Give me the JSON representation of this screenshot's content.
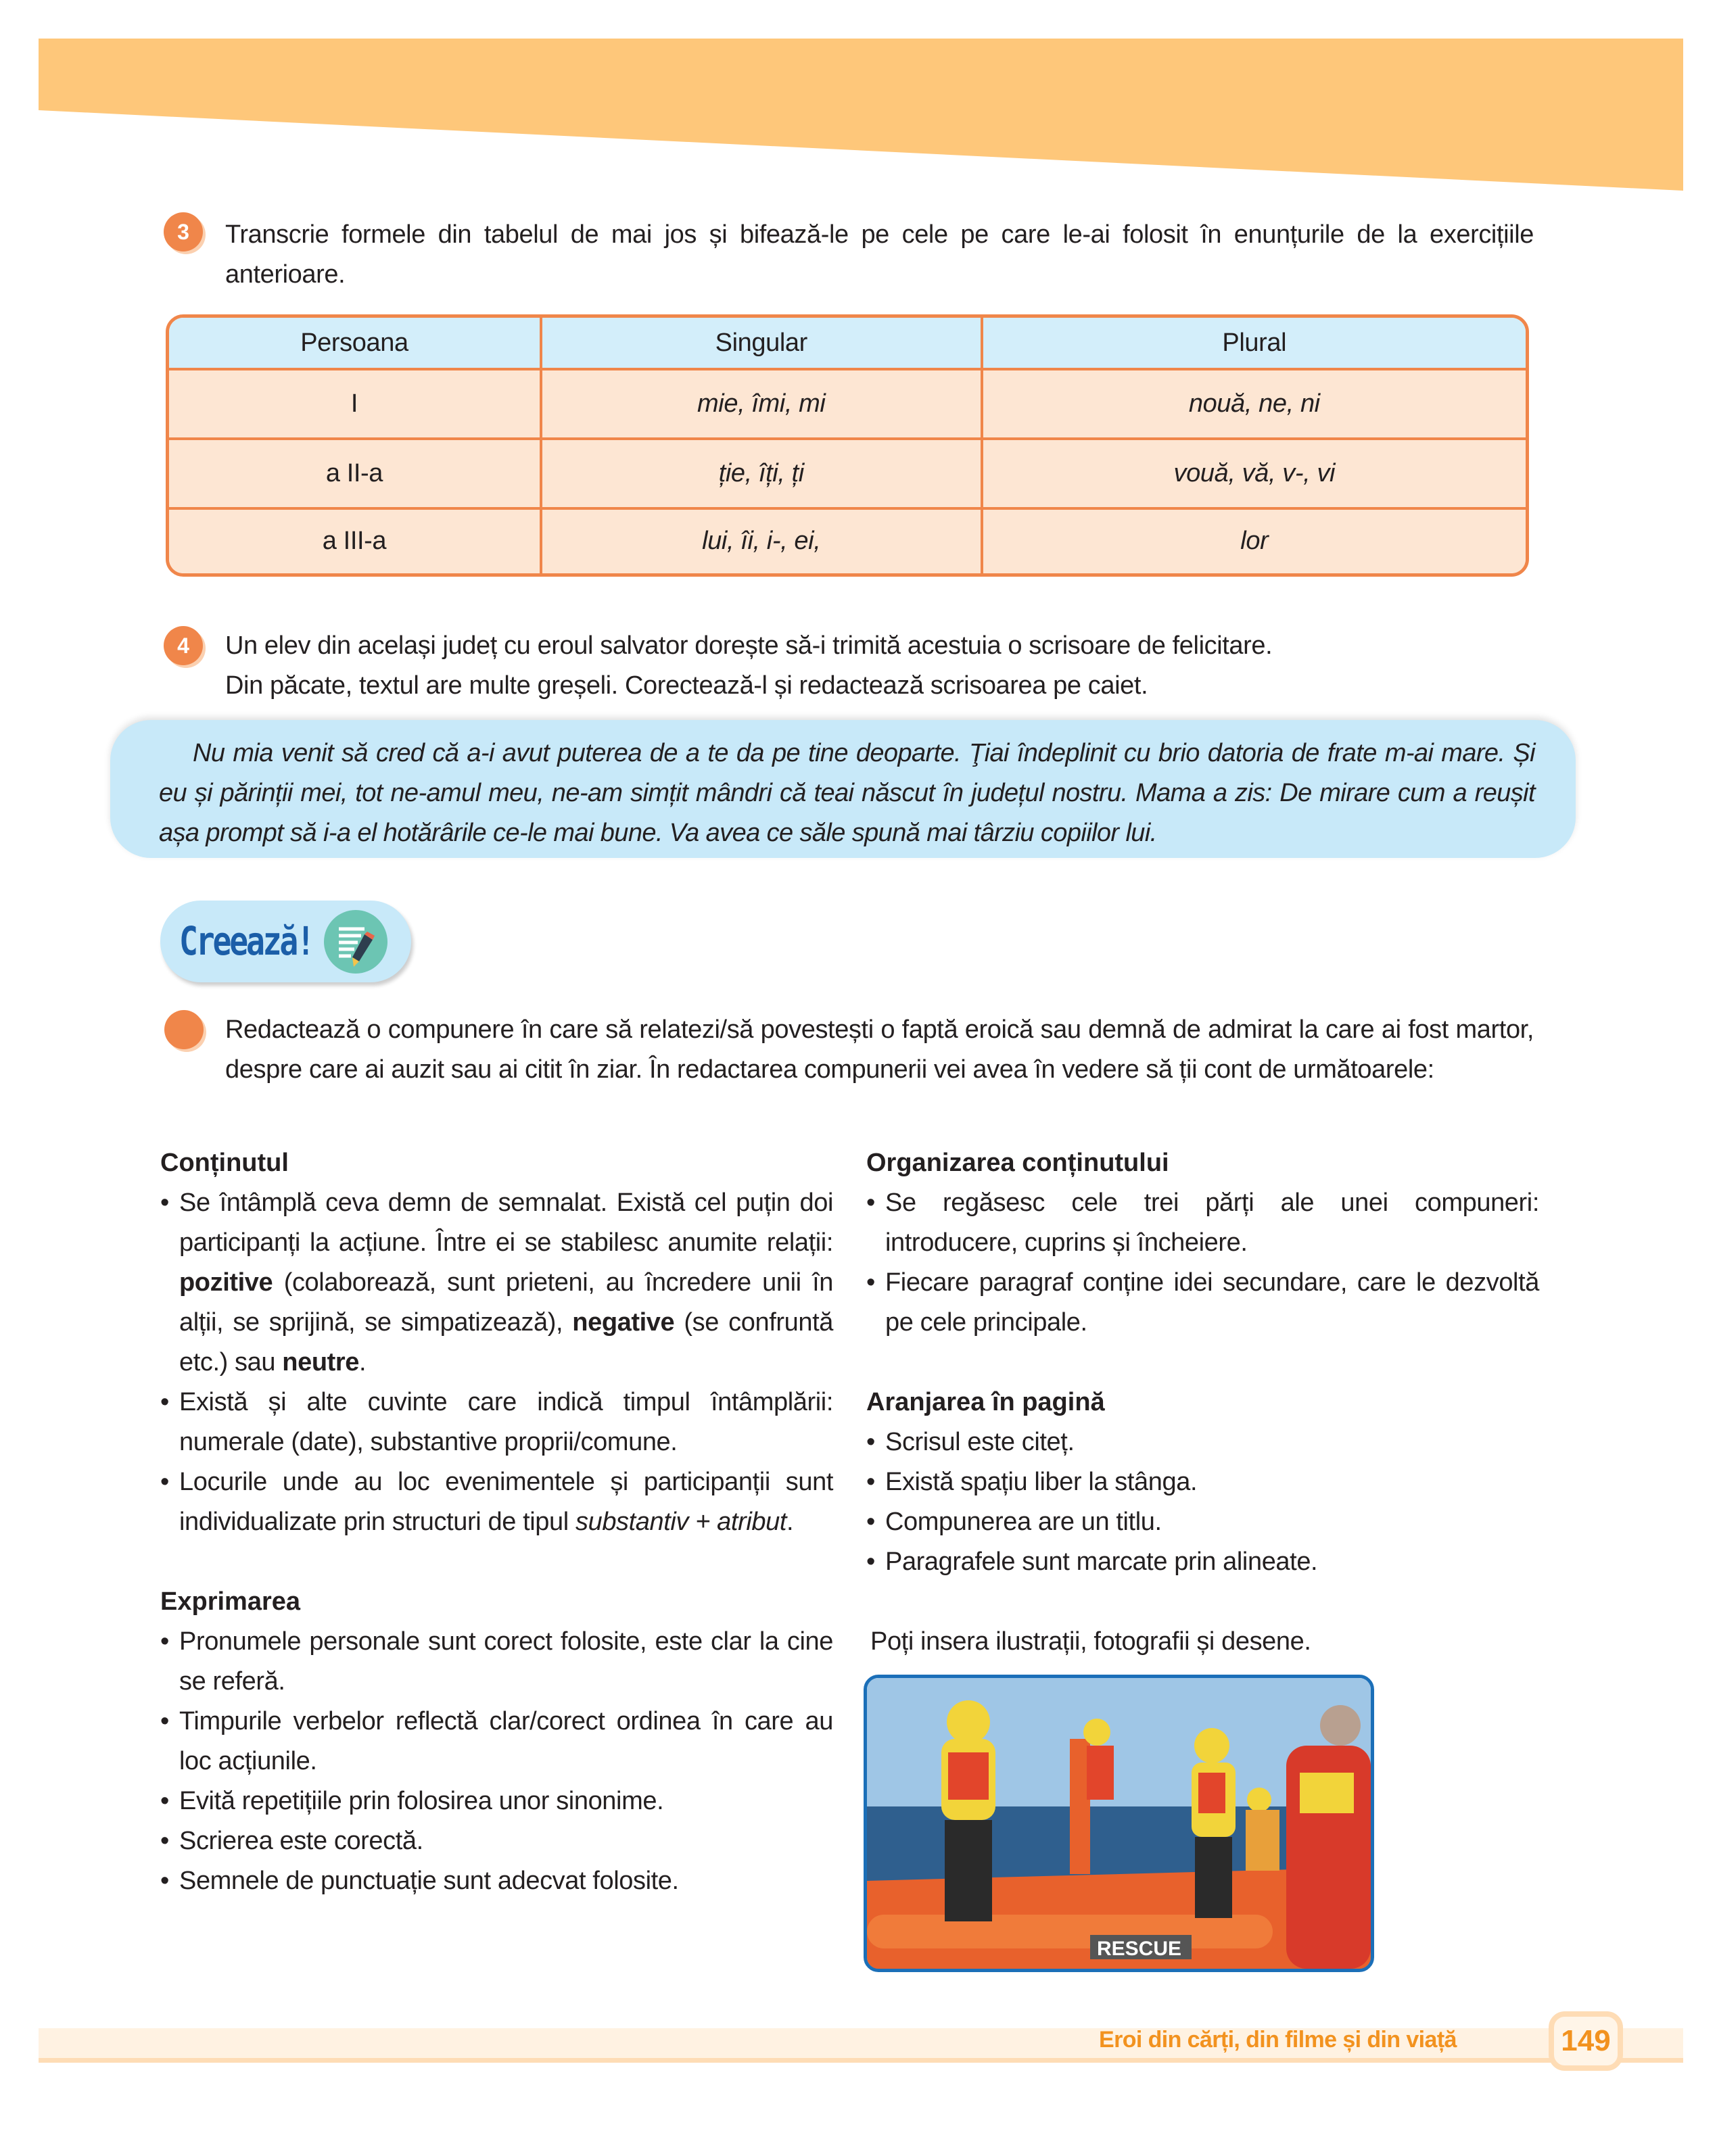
{
  "colors": {
    "accent": "#f0864a",
    "header_band": "#fec77a",
    "table_header": "#d3eefa",
    "table_cell": "#fde6d3",
    "quote_bg": "#c8e9f9",
    "title_blue": "#1b5ea8",
    "footer_orange": "#f2921f"
  },
  "ex3": {
    "number": "3",
    "text": "Transcrie formele din tabelul de mai jos și bifează-le pe cele pe care le-ai folosit în enunțurile de la exercițiile anterioare."
  },
  "table": {
    "headers": [
      "Persoana",
      "Singular",
      "Plural"
    ],
    "rows": [
      [
        "I",
        "mie, îmi, mi",
        "nouă, ne, ni"
      ],
      [
        "a II-a",
        "ție, îți, ți",
        "vouă, vă, v-, vi"
      ],
      [
        "a III-a",
        "lui, îi, i-, ei,",
        "lor"
      ]
    ]
  },
  "ex4": {
    "number": "4",
    "line1": "Un elev din același județ cu eroul salvator dorește să-i trimită acestuia o scrisoare de felicitare.",
    "line2": "Din păcate, textul are multe greșeli. Corectează-l și redactează scrisoarea pe caiet."
  },
  "letter": "Nu mia venit să cred că a-i avut puterea de a te da pe tine deoparte. Ţiai îndeplinit cu brio datoria de frate m-ai mare. Și eu și părinții mei, tot ne-amul meu, ne-am simțit mândri că teai născut în județul nostru. Mama a zis: De mirare cum a reușit așa prompt să i-a el hotărârile ce-le mai bune. Va avea ce săle spună mai târziu copiilor lui.",
  "create": {
    "label": "Creează!",
    "icon": "writing-pencil-icon"
  },
  "task": "Redactează o compunere în care să relatezi/să povestești o faptă eroică sau demnă de admirat la care ai fost martor, despre care ai auzit sau ai citit în ziar. În redactarea compunerii vei avea în vedere să ții cont de următoarele:",
  "left": {
    "content_title": "Conținutul",
    "content_items": [
      {
        "a": "Se întâmplă ceva demn de semnalat. Există cel puțin doi participanți la acțiune. Între ei se stabilesc anumite relații: ",
        "b1": "pozitive",
        "c": " (colaborează, sunt prieteni, au încredere unii în alții, se sprijină, se simpatizează), ",
        "b2": "negative",
        "d": " (se confruntă etc.) sau ",
        "b3": "neutre",
        "e": "."
      },
      {
        "a": "Există și alte cuvinte care indică timpul întâmplării: numerale (date), substantive proprii/comune."
      },
      {
        "a": "Locurile unde au loc evenimentele și participanții sunt individualizate prin structuri de tipul ",
        "i": "substantiv + atribut",
        "e": "."
      }
    ],
    "expr_title": "Exprimarea",
    "expr_items": [
      "Pronumele personale sunt corect folosite, este clar la cine se referă.",
      "Timpurile verbelor reflectă clar/corect ordinea în care au loc acțiunile.",
      "Evită repetițiile prin folosirea unor sinonime.",
      "Scrierea este corectă.",
      "Semnele de punctuație sunt adecvat folosite."
    ]
  },
  "right": {
    "org_title": "Organizarea conținutului",
    "org_items": [
      "Se regăsesc cele trei părți ale unei compuneri: introducere, cuprins și încheiere.",
      "Fiecare paragraf conține idei secundare, care le dezvoltă pe cele principale."
    ],
    "layout_title": "Aranjarea în pagină",
    "layout_items": [
      "Scrisul este citeț.",
      "Există spațiu liber la stânga.",
      "Compunerea are un titlu.",
      "Paragrafele sunt marcate prin alineate."
    ],
    "insert_note": "Poți insera ilustrații, fotografii și desene.",
    "photo_label": "RESCUE"
  },
  "footer": {
    "title": "Eroi din cărți, din filme și din viață",
    "page": "149"
  }
}
